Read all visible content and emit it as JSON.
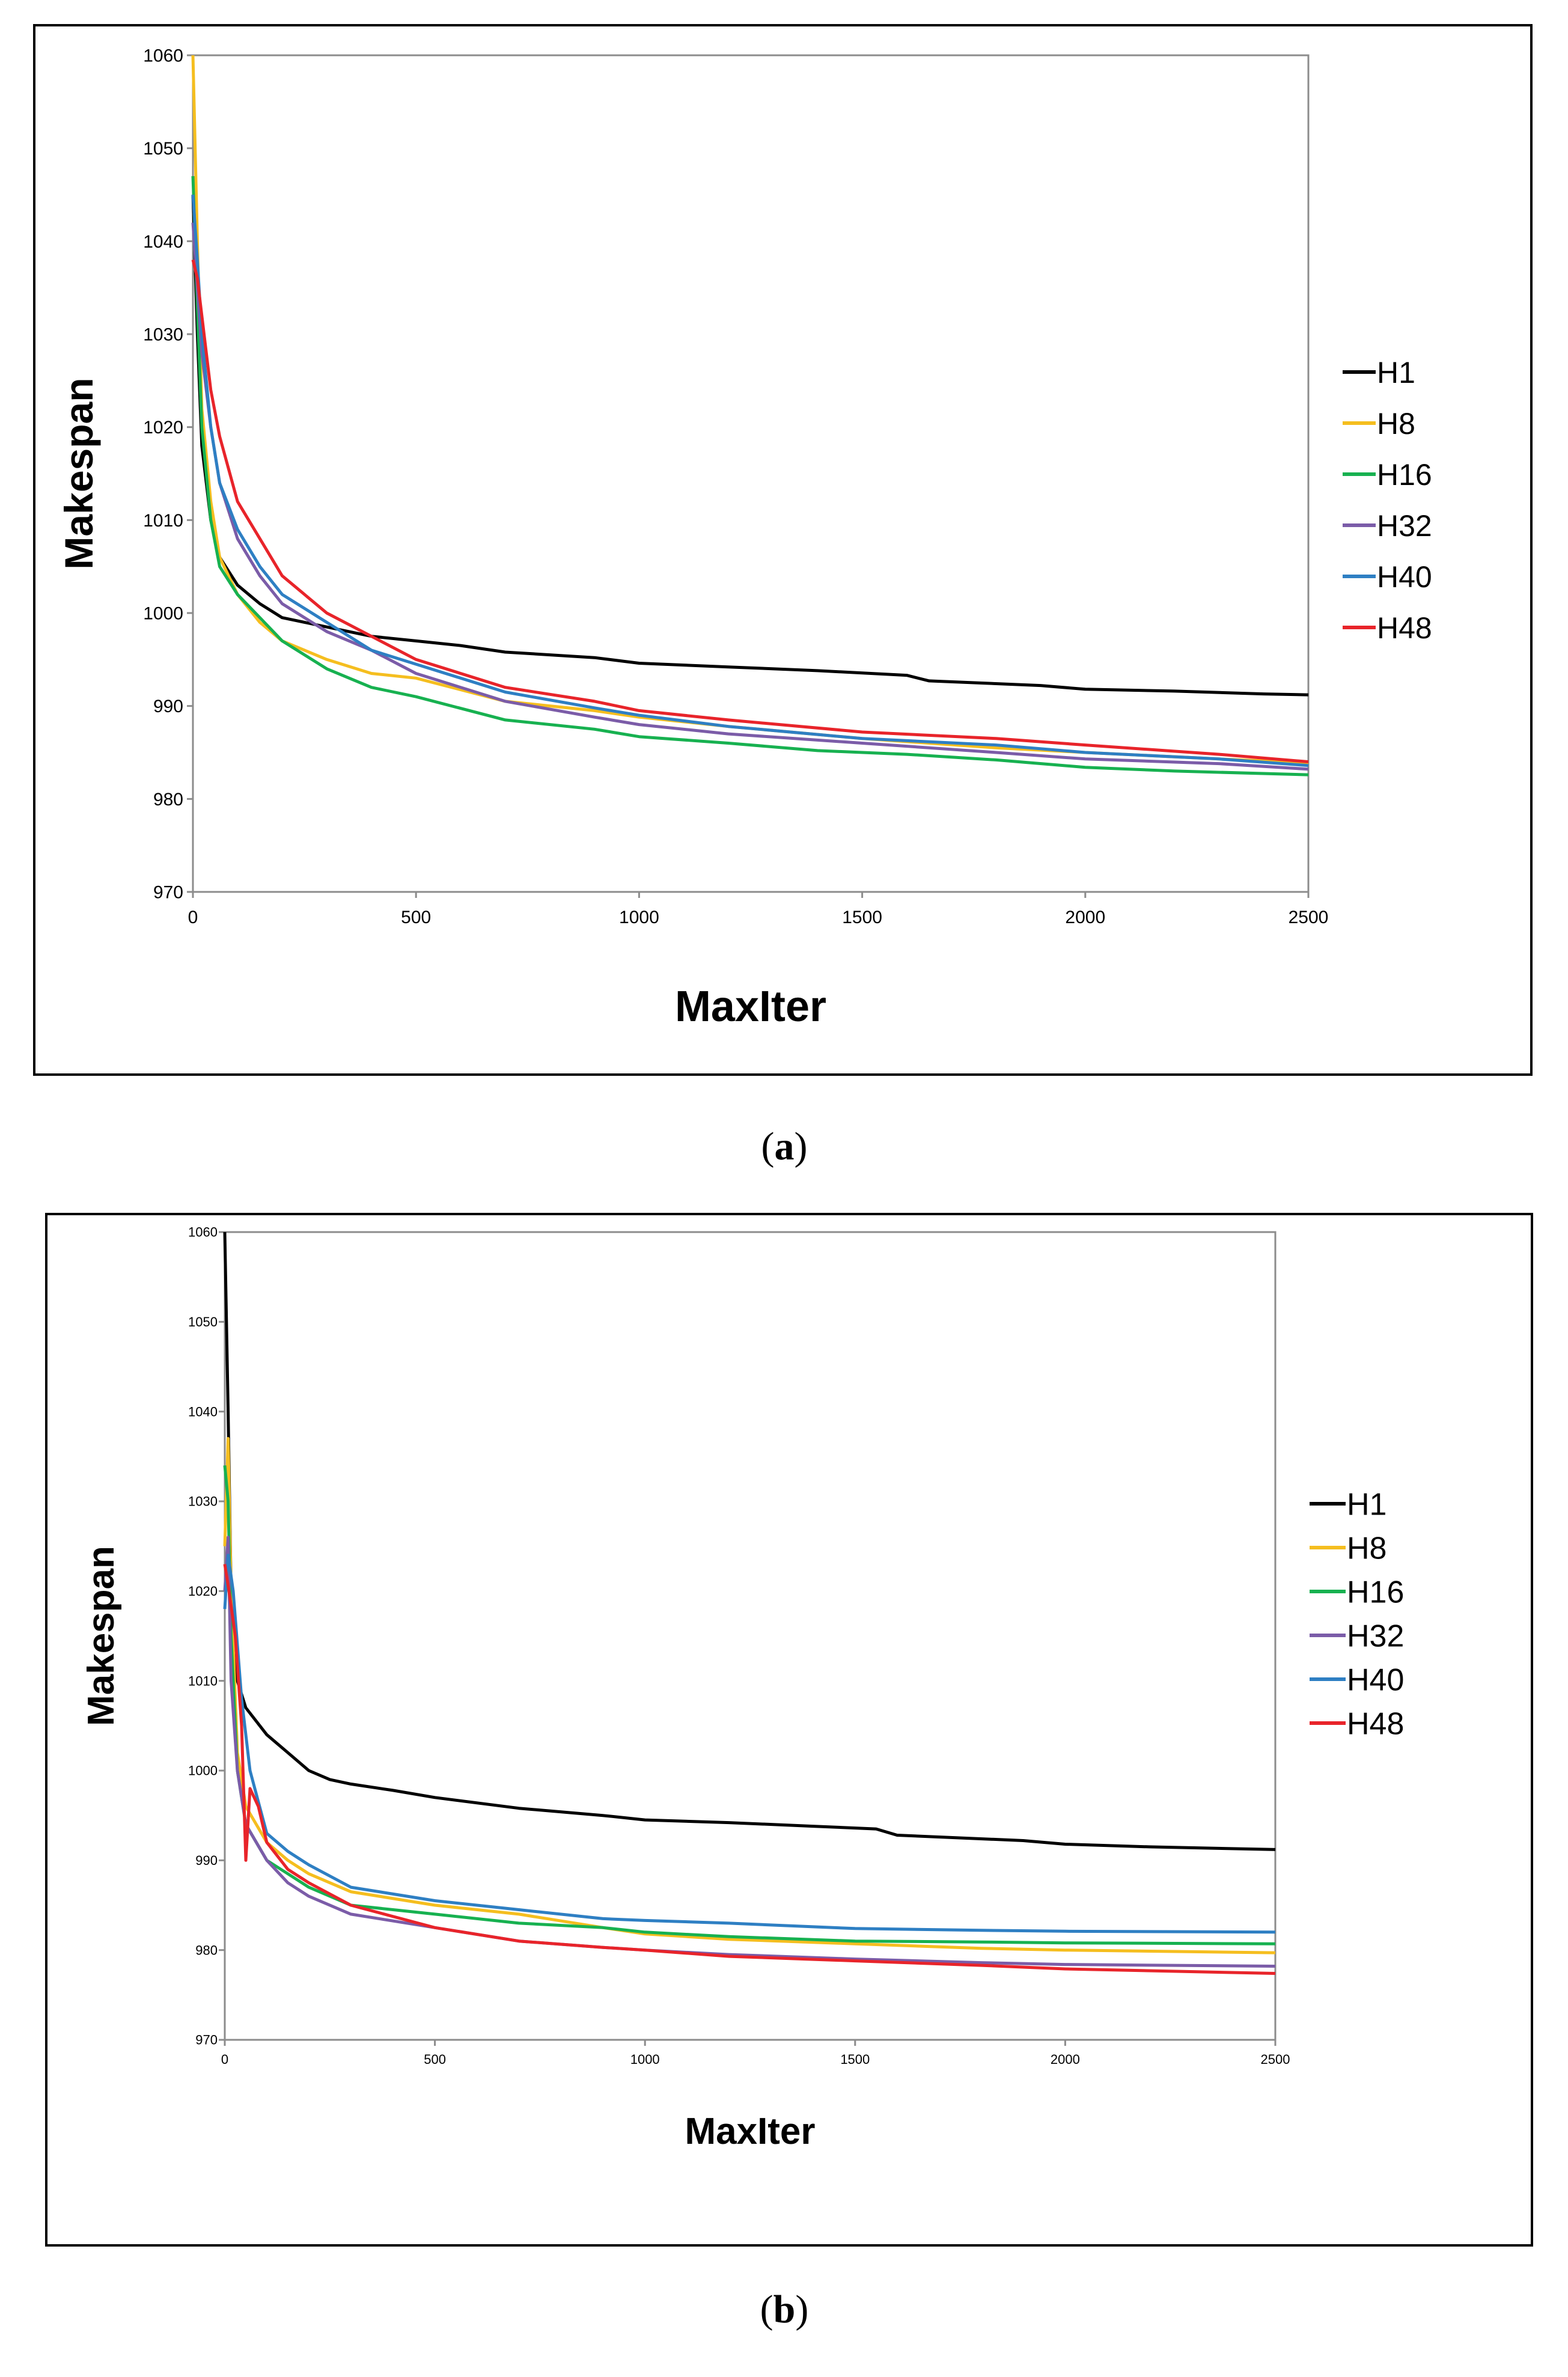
{
  "captions": {
    "a": "a",
    "b": "b"
  },
  "chart_data": [
    {
      "id": "a",
      "type": "line",
      "title": "",
      "xlabel": "MaxIter",
      "ylabel": "Makespan",
      "xlim": [
        0,
        2500
      ],
      "ylim": [
        970,
        1060
      ],
      "xticks": [
        0,
        500,
        1000,
        1500,
        2000,
        2500
      ],
      "yticks": [
        970,
        980,
        990,
        1000,
        1010,
        1020,
        1030,
        1040,
        1050,
        1060
      ],
      "grid": false,
      "legend": "right",
      "series": [
        {
          "name": "H1",
          "color": "#000000",
          "points": [
            [
              0,
              1045
            ],
            [
              10,
              1030
            ],
            [
              20,
              1018
            ],
            [
              40,
              1010
            ],
            [
              60,
              1006
            ],
            [
              100,
              1003
            ],
            [
              150,
              1001
            ],
            [
              200,
              999.5
            ],
            [
              300,
              998.5
            ],
            [
              400,
              997.5
            ],
            [
              500,
              997
            ],
            [
              600,
              996.5
            ],
            [
              700,
              995.8
            ],
            [
              900,
              995.2
            ],
            [
              1000,
              994.6
            ],
            [
              1200,
              994.2
            ],
            [
              1400,
              993.8
            ],
            [
              1600,
              993.3
            ],
            [
              1650,
              992.7
            ],
            [
              1900,
              992.2
            ],
            [
              2000,
              991.8
            ],
            [
              2200,
              991.6
            ],
            [
              2400,
              991.3
            ],
            [
              2500,
              991.2
            ]
          ]
        },
        {
          "name": "H8",
          "color": "#f5be1f",
          "points": [
            [
              0,
              1060
            ],
            [
              10,
              1040
            ],
            [
              20,
              1022
            ],
            [
              40,
              1012
            ],
            [
              60,
              1006
            ],
            [
              100,
              1002
            ],
            [
              150,
              999
            ],
            [
              200,
              997
            ],
            [
              300,
              995
            ],
            [
              400,
              993.5
            ],
            [
              500,
              993
            ],
            [
              700,
              990.5
            ],
            [
              900,
              989.5
            ],
            [
              1000,
              988.8
            ],
            [
              1200,
              987.8
            ],
            [
              1500,
              986.5
            ],
            [
              1800,
              985.5
            ],
            [
              2000,
              985
            ],
            [
              2300,
              984.3
            ],
            [
              2500,
              983.9
            ]
          ]
        },
        {
          "name": "H16",
          "color": "#17b150",
          "points": [
            [
              0,
              1047
            ],
            [
              10,
              1033
            ],
            [
              20,
              1020
            ],
            [
              40,
              1010
            ],
            [
              60,
              1005
            ],
            [
              100,
              1002
            ],
            [
              150,
              999.5
            ],
            [
              200,
              997
            ],
            [
              300,
              994
            ],
            [
              400,
              992
            ],
            [
              500,
              991
            ],
            [
              700,
              988.5
            ],
            [
              900,
              987.5
            ],
            [
              1000,
              986.7
            ],
            [
              1200,
              986
            ],
            [
              1400,
              985.2
            ],
            [
              1600,
              984.8
            ],
            [
              1800,
              984.2
            ],
            [
              2000,
              983.4
            ],
            [
              2200,
              983
            ],
            [
              2500,
              982.6
            ]
          ]
        },
        {
          "name": "H32",
          "color": "#7b5ca8",
          "points": [
            [
              0,
              1042
            ],
            [
              10,
              1035
            ],
            [
              20,
              1028
            ],
            [
              40,
              1020
            ],
            [
              60,
              1014
            ],
            [
              100,
              1008
            ],
            [
              150,
              1004
            ],
            [
              200,
              1001
            ],
            [
              300,
              998
            ],
            [
              400,
              996
            ],
            [
              500,
              993.5
            ],
            [
              700,
              990.5
            ],
            [
              900,
              988.8
            ],
            [
              1000,
              988
            ],
            [
              1200,
              987
            ],
            [
              1500,
              986
            ],
            [
              1800,
              985
            ],
            [
              2000,
              984.3
            ],
            [
              2300,
              983.8
            ],
            [
              2500,
              983.2
            ]
          ]
        },
        {
          "name": "H40",
          "color": "#2e7fc3",
          "points": [
            [
              0,
              1045
            ],
            [
              10,
              1038
            ],
            [
              20,
              1030
            ],
            [
              40,
              1020
            ],
            [
              60,
              1014
            ],
            [
              100,
              1009
            ],
            [
              150,
              1005
            ],
            [
              200,
              1002
            ],
            [
              300,
              999
            ],
            [
              400,
              996
            ],
            [
              500,
              994.5
            ],
            [
              700,
              991.5
            ],
            [
              900,
              989.8
            ],
            [
              1000,
              989
            ],
            [
              1200,
              987.8
            ],
            [
              1500,
              986.5
            ],
            [
              1800,
              985.8
            ],
            [
              2000,
              985
            ],
            [
              2300,
              984.3
            ],
            [
              2500,
              983.6
            ]
          ]
        },
        {
          "name": "H48",
          "color": "#e8242a",
          "points": [
            [
              0,
              1038
            ],
            [
              10,
              1036
            ],
            [
              20,
              1032
            ],
            [
              40,
              1024
            ],
            [
              60,
              1019
            ],
            [
              100,
              1012
            ],
            [
              150,
              1008
            ],
            [
              200,
              1004
            ],
            [
              300,
              1000
            ],
            [
              400,
              997.5
            ],
            [
              500,
              995
            ],
            [
              700,
              992
            ],
            [
              900,
              990.5
            ],
            [
              1000,
              989.5
            ],
            [
              1200,
              988.5
            ],
            [
              1500,
              987.2
            ],
            [
              1800,
              986.5
            ],
            [
              2000,
              985.8
            ],
            [
              2300,
              984.8
            ],
            [
              2500,
              984
            ]
          ]
        }
      ]
    },
    {
      "id": "b",
      "type": "line",
      "title": "",
      "xlabel": "MaxIter",
      "ylabel": "Makespan",
      "xlim": [
        0,
        2500
      ],
      "ylim": [
        970,
        1060
      ],
      "xticks": [
        0,
        500,
        1000,
        1500,
        2000,
        2500
      ],
      "yticks": [
        970,
        980,
        990,
        1000,
        1010,
        1020,
        1030,
        1040,
        1050,
        1060
      ],
      "grid": false,
      "legend": "right",
      "series": [
        {
          "name": "H1",
          "color": "#000000",
          "points": [
            [
              0,
              1060
            ],
            [
              8,
              1040
            ],
            [
              15,
              1020
            ],
            [
              30,
              1010
            ],
            [
              50,
              1007
            ],
            [
              100,
              1004
            ],
            [
              150,
              1002
            ],
            [
              200,
              1000
            ],
            [
              250,
              999
            ],
            [
              300,
              998.5
            ],
            [
              400,
              997.8
            ],
            [
              500,
              997
            ],
            [
              700,
              995.8
            ],
            [
              900,
              995
            ],
            [
              1000,
              994.5
            ],
            [
              1200,
              994.2
            ],
            [
              1400,
              993.8
            ],
            [
              1550,
              993.5
            ],
            [
              1600,
              992.8
            ],
            [
              1900,
              992.2
            ],
            [
              2000,
              991.8
            ],
            [
              2200,
              991.5
            ],
            [
              2500,
              991.2
            ]
          ]
        },
        {
          "name": "H8",
          "color": "#f5be1f",
          "points": [
            [
              0,
              1025
            ],
            [
              8,
              1037
            ],
            [
              15,
              1020
            ],
            [
              30,
              1002
            ],
            [
              50,
              996
            ],
            [
              100,
              992
            ],
            [
              150,
              990
            ],
            [
              200,
              988.5
            ],
            [
              300,
              986.5
            ],
            [
              500,
              985
            ],
            [
              700,
              984
            ],
            [
              900,
              982.5
            ],
            [
              1000,
              981.8
            ],
            [
              1200,
              981.2
            ],
            [
              1500,
              980.7
            ],
            [
              1800,
              980.2
            ],
            [
              2000,
              980
            ],
            [
              2500,
              979.7
            ]
          ]
        },
        {
          "name": "H16",
          "color": "#17b150",
          "points": [
            [
              0,
              1034
            ],
            [
              8,
              1030
            ],
            [
              15,
              1015
            ],
            [
              30,
              1000
            ],
            [
              50,
              994
            ],
            [
              100,
              990
            ],
            [
              150,
              988.5
            ],
            [
              200,
              987
            ],
            [
              300,
              985
            ],
            [
              500,
              984
            ],
            [
              700,
              983
            ],
            [
              900,
              982.5
            ],
            [
              1000,
              982
            ],
            [
              1200,
              981.5
            ],
            [
              1500,
              981
            ],
            [
              1800,
              980.9
            ],
            [
              2000,
              980.8
            ],
            [
              2500,
              980.7
            ]
          ]
        },
        {
          "name": "H32",
          "color": "#7b5ca8",
          "points": [
            [
              0,
              1020
            ],
            [
              8,
              1026
            ],
            [
              15,
              1010
            ],
            [
              30,
              1000
            ],
            [
              50,
              994
            ],
            [
              100,
              990
            ],
            [
              150,
              987.5
            ],
            [
              200,
              986
            ],
            [
              300,
              984
            ],
            [
              500,
              982.5
            ],
            [
              700,
              981
            ],
            [
              900,
              980.3
            ],
            [
              1000,
              980
            ],
            [
              1200,
              979.5
            ],
            [
              1500,
              979
            ],
            [
              1800,
              978.6
            ],
            [
              2000,
              978.4
            ],
            [
              2500,
              978.2
            ]
          ]
        },
        {
          "name": "H40",
          "color": "#2e7fc3",
          "points": [
            [
              0,
              1018
            ],
            [
              8,
              1024
            ],
            [
              20,
              1020
            ],
            [
              40,
              1008
            ],
            [
              60,
              1000
            ],
            [
              100,
              993
            ],
            [
              150,
              991
            ],
            [
              200,
              989.5
            ],
            [
              300,
              987
            ],
            [
              500,
              985.5
            ],
            [
              700,
              984.5
            ],
            [
              900,
              983.5
            ],
            [
              1000,
              983.3
            ],
            [
              1200,
              983
            ],
            [
              1500,
              982.4
            ],
            [
              1800,
              982.2
            ],
            [
              2000,
              982.1
            ],
            [
              2500,
              982
            ]
          ]
        },
        {
          "name": "H48",
          "color": "#e8242a",
          "points": [
            [
              0,
              1023
            ],
            [
              10,
              1020
            ],
            [
              25,
              1015
            ],
            [
              40,
              1005
            ],
            [
              50,
              990
            ],
            [
              60,
              998
            ],
            [
              80,
              996
            ],
            [
              100,
              992
            ],
            [
              150,
              989
            ],
            [
              200,
              987.5
            ],
            [
              300,
              985
            ],
            [
              500,
              982.5
            ],
            [
              700,
              981
            ],
            [
              900,
              980.3
            ],
            [
              1000,
              980
            ],
            [
              1200,
              979.3
            ],
            [
              1500,
              978.8
            ],
            [
              1800,
              978.3
            ],
            [
              2000,
              977.9
            ],
            [
              2500,
              977.4
            ]
          ]
        }
      ]
    }
  ]
}
